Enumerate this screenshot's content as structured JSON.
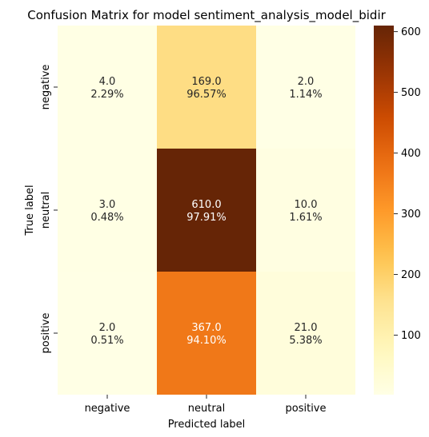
{
  "chart_data": {
    "type": "heatmap",
    "title": "Confusion Matrix for model sentiment_analysis_model_bidir",
    "xlabel": "Predicted label",
    "ylabel": "True label",
    "x_categories": [
      "negative",
      "neutral",
      "positive"
    ],
    "y_categories": [
      "negative",
      "neutral",
      "positive"
    ],
    "values": [
      [
        4.0,
        169.0,
        2.0
      ],
      [
        3.0,
        610.0,
        10.0
      ],
      [
        2.0,
        367.0,
        21.0
      ]
    ],
    "cell_labels": [
      [
        [
          "4.0",
          "2.29%"
        ],
        [
          "169.0",
          "96.57%"
        ],
        [
          "2.0",
          "1.14%"
        ]
      ],
      [
        [
          "3.0",
          "0.48%"
        ],
        [
          "610.0",
          "97.91%"
        ],
        [
          "10.0",
          "1.61%"
        ]
      ],
      [
        [
          "2.0",
          "0.51%"
        ],
        [
          "367.0",
          "94.10%"
        ],
        [
          "21.0",
          "5.38%"
        ]
      ]
    ],
    "colormap": "YlOrBr",
    "colorbar": {
      "range": [
        2,
        610
      ],
      "ticks": [
        100,
        200,
        300,
        400,
        500,
        600
      ],
      "tick_labels": [
        "100",
        "200",
        "300",
        "400",
        "500",
        "600"
      ]
    }
  }
}
